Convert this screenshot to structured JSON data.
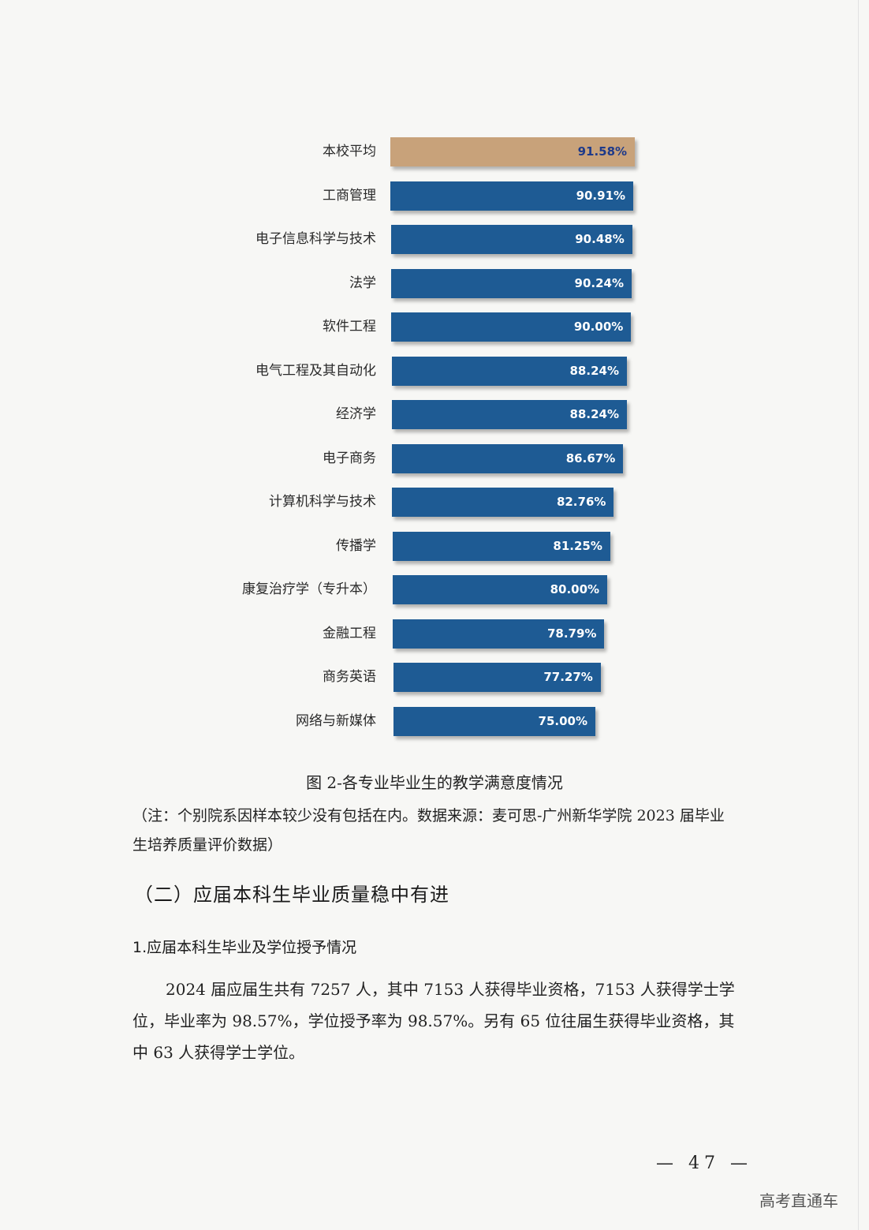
{
  "chart_data": {
    "type": "bar",
    "orientation": "horizontal",
    "categories": [
      "本校平均",
      "工商管理",
      "电子信息科学与技术",
      "法学",
      "软件工程",
      "电气工程及其自动化",
      "经济学",
      "电子商务",
      "计算机科学与技术",
      "传播学",
      "康复治疗学（专升本）",
      "金融工程",
      "商务英语",
      "网络与新媒体"
    ],
    "values": [
      91.58,
      90.91,
      90.48,
      90.24,
      90.0,
      88.24,
      88.24,
      86.67,
      82.76,
      81.25,
      80.0,
      78.79,
      77.27,
      75.0
    ],
    "value_labels": [
      "91.58%",
      "90.91%",
      "90.48%",
      "90.24%",
      "90.00%",
      "88.24%",
      "88.24%",
      "86.67%",
      "82.76%",
      "81.25%",
      "80.00%",
      "78.79%",
      "77.27%",
      "75.00%"
    ],
    "colors": {
      "highlight": "#c8a27a",
      "default": "#1e5b94"
    },
    "highlight_index": 0,
    "xlim": [
      0,
      100
    ]
  },
  "caption": "图 2-各专业毕业生的教学满意度情况",
  "note": "（注：个别院系因样本较少没有包括在内。数据来源：麦可思-广州新华学院 2023 届毕业生培养质量评价数据）",
  "section_title": "（二）应届本科生毕业质量稳中有进",
  "sub_title": "1.应届本科生毕业及学位授予情况",
  "body_text": "2024 届应届生共有 7257 人，其中 7153 人获得毕业资格，7153 人获得学士学位，毕业率为 98.57%，学位授予率为 98.57%。另有 65 位往届生获得毕业资格，其中 63 人获得学士学位。",
  "page_number": "— 47 —",
  "watermark": "高考直通车"
}
